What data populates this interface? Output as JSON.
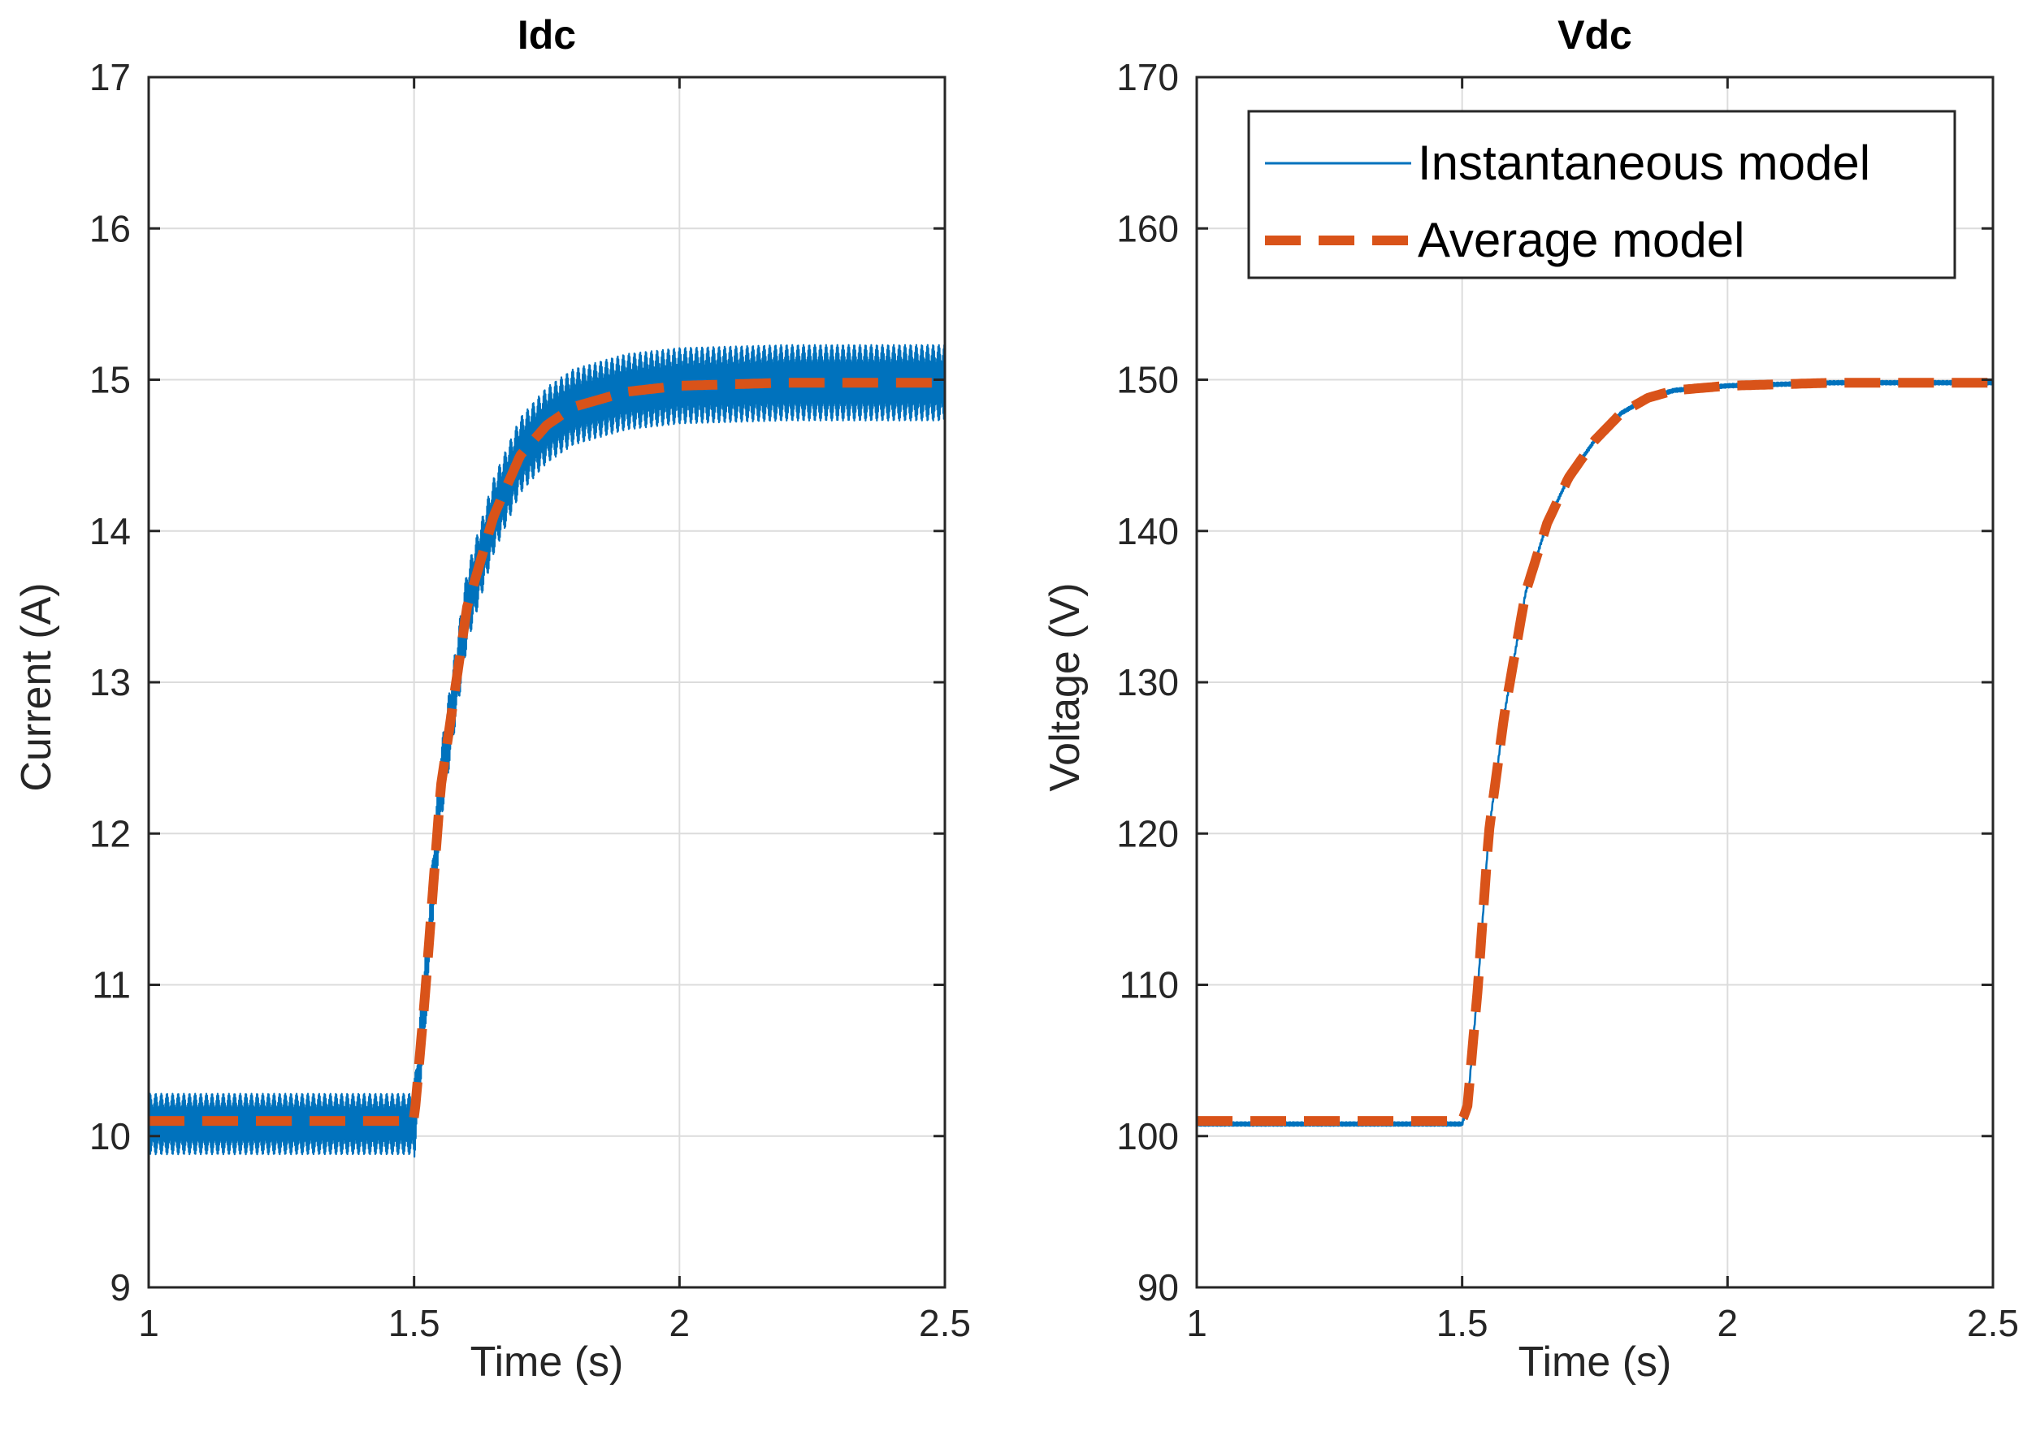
{
  "chart_data": [
    {
      "type": "line",
      "title": "Idc",
      "xlabel": "Time (s)",
      "ylabel": "Current (A)",
      "xlim": [
        1,
        2.5
      ],
      "ylim": [
        9,
        17
      ],
      "xticks": [
        1,
        1.5,
        2,
        2.5
      ],
      "xtick_labels": [
        "1",
        "1.5",
        "2",
        "2.5"
      ],
      "yticks": [
        9,
        10,
        11,
        12,
        13,
        14,
        15,
        16,
        17
      ],
      "ytick_labels": [
        "9",
        "10",
        "11",
        "12",
        "13",
        "14",
        "15",
        "16",
        "17"
      ],
      "grid": true,
      "legend": null,
      "step_time": 1.5,
      "series": [
        {
          "name": "Instantaneous model",
          "color": "#0072BD",
          "style": "solid-ripple",
          "ripple_amplitude": [
            0.2,
            0.25
          ],
          "x": [
            1.0,
            1.5,
            1.52,
            1.55,
            1.6,
            1.65,
            1.7,
            1.75,
            1.8,
            1.9,
            2.0,
            2.1,
            2.2,
            2.3,
            2.4,
            2.5
          ],
          "y": [
            10.08,
            10.08,
            10.9,
            12.3,
            13.5,
            14.1,
            14.5,
            14.7,
            14.82,
            14.92,
            14.96,
            14.97,
            14.98,
            14.98,
            14.98,
            14.98
          ]
        },
        {
          "name": "Average model",
          "color": "#D95319",
          "style": "dashed",
          "x": [
            1.0,
            1.5,
            1.52,
            1.55,
            1.6,
            1.65,
            1.7,
            1.75,
            1.8,
            1.9,
            2.0,
            2.1,
            2.2,
            2.3,
            2.4,
            2.5
          ],
          "y": [
            10.1,
            10.1,
            10.9,
            12.3,
            13.5,
            14.1,
            14.5,
            14.7,
            14.82,
            14.92,
            14.96,
            14.97,
            14.98,
            14.98,
            14.98,
            14.98
          ]
        }
      ]
    },
    {
      "type": "line",
      "title": "Vdc",
      "xlabel": "Time (s)",
      "ylabel": "Voltage (V)",
      "xlim": [
        1,
        2.5
      ],
      "ylim": [
        90,
        170
      ],
      "xticks": [
        1,
        1.5,
        2,
        2.5
      ],
      "xtick_labels": [
        "1",
        "1.5",
        "2",
        "2.5"
      ],
      "yticks": [
        90,
        100,
        110,
        120,
        130,
        140,
        150,
        160,
        170
      ],
      "ytick_labels": [
        "90",
        "100",
        "110",
        "120",
        "130",
        "140",
        "150",
        "160",
        "170"
      ],
      "grid": true,
      "legend": "top-right",
      "step_time": 1.5,
      "series": [
        {
          "name": "Instantaneous model",
          "color": "#0072BD",
          "style": "solid",
          "ripple_amplitude": [
            0.15,
            0.15
          ],
          "x": [
            1.0,
            1.5,
            1.51,
            1.53,
            1.55,
            1.58,
            1.62,
            1.66,
            1.7,
            1.75,
            1.8,
            1.85,
            1.9,
            2.0,
            2.1,
            2.2,
            2.3,
            2.4,
            2.5
          ],
          "y": [
            100.8,
            100.8,
            102.0,
            110.0,
            120.0,
            128.0,
            136.0,
            140.5,
            143.5,
            146.0,
            147.8,
            148.8,
            149.3,
            149.6,
            149.7,
            149.8,
            149.8,
            149.8,
            149.8
          ]
        },
        {
          "name": "Average model",
          "color": "#D95319",
          "style": "dashed",
          "x": [
            1.0,
            1.5,
            1.51,
            1.53,
            1.55,
            1.58,
            1.62,
            1.66,
            1.7,
            1.75,
            1.8,
            1.85,
            1.9,
            2.0,
            2.1,
            2.2,
            2.3,
            2.4,
            2.5
          ],
          "y": [
            101.0,
            101.0,
            102.0,
            110.0,
            120.0,
            128.0,
            136.0,
            140.5,
            143.5,
            146.0,
            147.8,
            148.8,
            149.3,
            149.6,
            149.7,
            149.8,
            149.8,
            149.8,
            149.8
          ]
        }
      ]
    }
  ]
}
